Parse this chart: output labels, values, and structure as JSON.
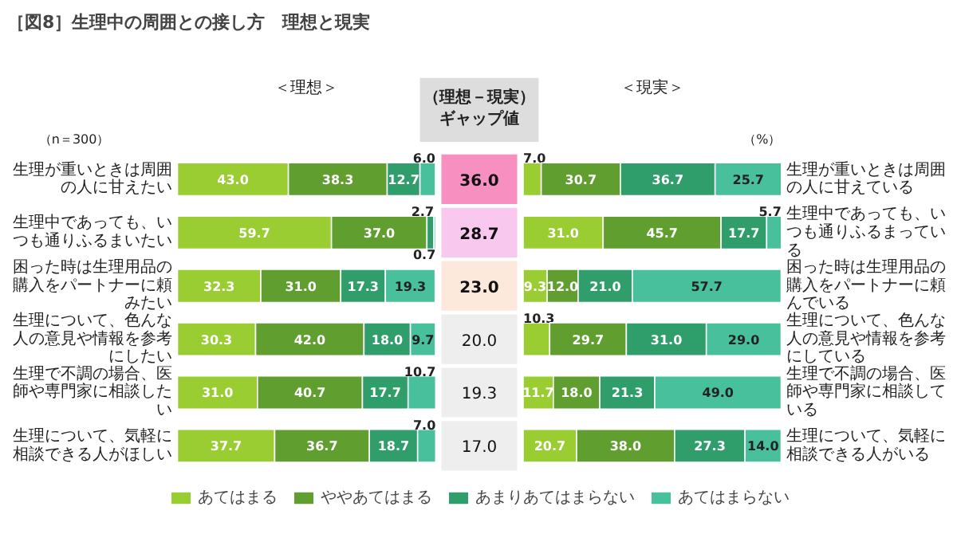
{
  "chart_data": [
    {
      "type": "bar",
      "orientation": "horizontal",
      "stacked": true,
      "title": "［図8］生理中の周囲との接し方　理想と現実",
      "subtitle": "＜理想＞",
      "annotations": [
        "（n＝300）"
      ],
      "categories": [
        "生理が重いときは周囲の人に甘えたい",
        "生理中であっても、いつも通りふるまいたい",
        "困った時は生理用品の購入をパートナーに頼みたい",
        "生理について、色んな人の意見や情報を参考にしたい",
        "生理で不調の場合、医師や専門家に相談したい",
        "生理について、気軽に相談できる人がほしい"
      ],
      "tick_labels": "y",
      "legend": "bottom",
      "series": [
        {
          "name": "あてはまる",
          "color": "#9acd32",
          "values": [
            43.0,
            59.7,
            32.3,
            30.3,
            31.0,
            37.7
          ],
          "value_labels": [
            "43.0",
            "59.7",
            "32.3",
            "30.3",
            "31.0",
            "37.7"
          ]
        },
        {
          "name": "ややあてはまる",
          "color": "#5f9e2f",
          "values": [
            38.3,
            37.0,
            31.0,
            42.0,
            40.7,
            36.7
          ],
          "value_labels": [
            "38.3",
            "37.0",
            "31.0",
            "42.0",
            "40.7",
            "36.7"
          ]
        },
        {
          "name": "あまりあてはまらない",
          "color": "#2f9e6b",
          "values": [
            12.7,
            2.7,
            17.3,
            18.0,
            17.7,
            18.7
          ],
          "value_labels": [
            "12.7",
            "2.7",
            "17.3",
            "18.0",
            "17.7",
            "18.7"
          ]
        },
        {
          "name": "あてはまらない",
          "color": "#48c09c",
          "values": [
            6.0,
            0.7,
            19.3,
            9.7,
            10.7,
            7.0
          ],
          "value_labels": [
            "6.0",
            "0.7",
            "19.3",
            "9.7",
            "10.7",
            "7.0"
          ]
        }
      ]
    },
    {
      "type": "other",
      "title": "（理想－現実）ギャップ値",
      "categories": [
        null,
        null,
        null,
        null,
        null,
        null
      ],
      "value_labels": [
        "36.0",
        "28.7",
        "23.0",
        "20.0",
        "19.3",
        "17.0"
      ],
      "colors": [
        "#f78fc0",
        "#f9c8ef",
        "#fde8dc",
        "#eeeeee",
        "#eeeeee",
        "#eeeeee"
      ]
    },
    {
      "type": "bar",
      "orientation": "horizontal",
      "stacked": true,
      "title": "＜現実＞",
      "annotations": [
        "（%）"
      ],
      "categories": [
        "生理が重いときは周囲の人に甘えている",
        "生理中であっても、いつも通りふるまっている",
        "困った時は生理用品の購入をパートナーに頼んでいる",
        "生理について、色んな人の意見や情報を参考にしている",
        "生理で不調の場合、医師や専門家に相談している",
        "生理について、気軽に相談できる人がいる"
      ],
      "tick_labels": "y",
      "series": [
        {
          "color": "#9acd32",
          "values": [
            7.0,
            31.0,
            9.3,
            10.3,
            11.7,
            20.7
          ],
          "value_labels": [
            "7.0",
            "31.0",
            "9.3",
            "10.3",
            "11.7",
            "20.7"
          ]
        },
        {
          "color": "#5f9e2f",
          "values": [
            30.7,
            45.7,
            12.0,
            29.7,
            18.0,
            38.0
          ],
          "value_labels": [
            "30.7",
            "45.7",
            "12.0",
            "29.7",
            "18.0",
            "38.0"
          ]
        },
        {
          "color": "#2f9e6b",
          "values": [
            36.7,
            17.7,
            21.0,
            31.0,
            21.3,
            27.3
          ],
          "value_labels": [
            "36.7",
            "17.7",
            "21.0",
            "31.0",
            "21.3",
            "27.3"
          ]
        },
        {
          "color": "#48c09c",
          "values": [
            25.7,
            5.7,
            57.7,
            29.0,
            49.0,
            14.0
          ],
          "value_labels": [
            "25.7",
            "5.7",
            "57.7",
            "29.0",
            "49.0",
            "14.0"
          ]
        }
      ]
    }
  ]
}
